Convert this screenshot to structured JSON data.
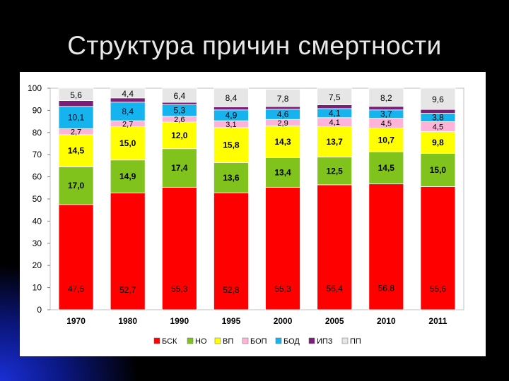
{
  "slide": {
    "title": "Структура причин смертности"
  },
  "colors": {
    "БСК": "#ff0000",
    "НО": "#7fc31c",
    "ВП": "#ffff00",
    "БОП": "#ffb3d9",
    "БОД": "#16b4ee",
    "ИПЗ": "#7a1e7a",
    "ПП": "#e6e6e6"
  },
  "chart_data": {
    "type": "bar",
    "stacked": true,
    "title": "",
    "xlabel": "",
    "ylabel": "",
    "ylim": [
      0,
      100
    ],
    "yticks": [
      "0",
      "10",
      "20",
      "30",
      "40",
      "50",
      "60",
      "70",
      "80",
      "90",
      "100"
    ],
    "grid": false,
    "legend_position": "bottom",
    "categories": [
      "1970",
      "1980",
      "1990",
      "1995",
      "2000",
      "2005",
      "2010",
      "2011"
    ],
    "series": [
      {
        "name": "БСК",
        "values": [
          47.5,
          52.7,
          55.3,
          52.8,
          55.3,
          56.4,
          56.8,
          55.6
        ],
        "labels": [
          "47,5",
          "52,7",
          "55,3",
          "52,8",
          "55,3",
          "56,4",
          "56,8",
          "55,6"
        ]
      },
      {
        "name": "НО",
        "values": [
          17.0,
          14.9,
          17.4,
          13.6,
          13.4,
          12.5,
          14.5,
          15.0
        ],
        "labels": [
          "17,0",
          "14,9",
          "17,4",
          "13,6",
          "13,4",
          "12,5",
          "14,5",
          "15,0"
        ]
      },
      {
        "name": "ВП",
        "values": [
          14.5,
          15.0,
          12.0,
          15.8,
          14.3,
          13.7,
          10.7,
          9.8
        ],
        "labels": [
          "14,5",
          "15,0",
          "12,0",
          "15,8",
          "14,3",
          "13,7",
          "10,7",
          "9,8"
        ]
      },
      {
        "name": "БОП",
        "values": [
          2.7,
          2.7,
          2.6,
          3.1,
          2.9,
          4.1,
          4.5,
          4.5
        ],
        "labels": [
          "2,7",
          "2,7",
          "2,6",
          "3,1",
          "2,9",
          "4,1",
          "4,5",
          "4,5"
        ]
      },
      {
        "name": "БОД",
        "values": [
          10.1,
          8.4,
          5.3,
          4.9,
          4.6,
          4.1,
          3.7,
          3.8
        ],
        "labels": [
          "10,1",
          "8,4",
          "5,3",
          "4,9",
          "4,6",
          "4,1",
          "3,7",
          "3,8"
        ]
      },
      {
        "name": "ИПЗ",
        "values": [
          2.6,
          1.9,
          1.0,
          1.4,
          1.2,
          1.7,
          1.6,
          1.7
        ],
        "labels": [
          "",
          "",
          "",
          "",
          "",
          "",
          "",
          ""
        ]
      },
      {
        "name": "ПП",
        "values": [
          5.6,
          4.4,
          6.4,
          8.4,
          7.8,
          7.5,
          8.2,
          9.6
        ],
        "labels": [
          "5,6",
          "4,4",
          "6,4",
          "8,4",
          "7,8",
          "7,5",
          "8,2",
          "9,6"
        ]
      }
    ]
  }
}
